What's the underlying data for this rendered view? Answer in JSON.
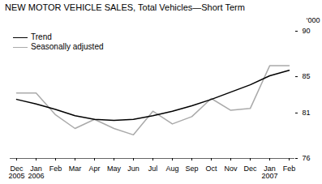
{
  "chart_data": {
    "type": "line",
    "title": "NEW MOTOR VEHICLE SALES, Total Vehicles—Short Term",
    "ylabel": "‘000",
    "categories": [
      "Dec",
      "Jan",
      "Feb",
      "Mar",
      "Apr",
      "May",
      "Jun",
      "Jul",
      "Aug",
      "Sep",
      "Oct",
      "Nov",
      "Dec",
      "Jan",
      "Feb"
    ],
    "year_labels": [
      "2005",
      "2006",
      null,
      null,
      null,
      null,
      null,
      null,
      null,
      null,
      null,
      null,
      null,
      "2007",
      null
    ],
    "series": [
      {
        "name": "Seasonally adjusted",
        "color": "#aaaaaa",
        "values": [
          83.2,
          83.2,
          80.8,
          79.3,
          80.3,
          79.3,
          78.6,
          81.2,
          79.8,
          80.6,
          82.6,
          81.3,
          81.5,
          86.2,
          86.2
        ]
      },
      {
        "name": "Trend",
        "color": "#000000",
        "values": [
          82.5,
          82.0,
          81.4,
          80.7,
          80.3,
          80.2,
          80.3,
          80.7,
          81.2,
          81.8,
          82.5,
          83.3,
          84.1,
          85.1,
          85.7
        ]
      }
    ],
    "ylim": [
      76,
      90
    ],
    "yticks": [
      76,
      81,
      85,
      90
    ],
    "grid": false,
    "legend": "upper left"
  }
}
